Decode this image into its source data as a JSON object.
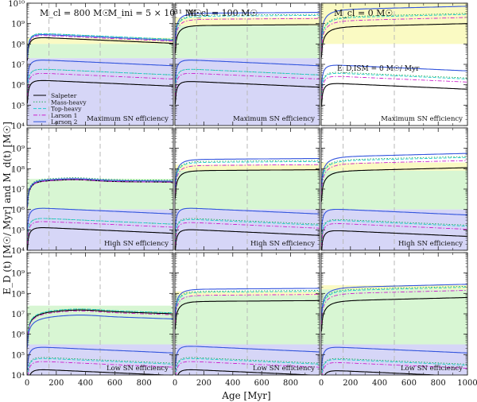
{
  "figure": {
    "ylabel": "E_D (t) [M☉/ Myr] and M_d(t) [M☉]",
    "xlabel": "Age [Myr]",
    "x_ticks": [
      0,
      200,
      400,
      600,
      800,
      1000
    ],
    "y_ticks": [
      "10⁴",
      "10⁵",
      "10⁶",
      "10⁷",
      "10⁸",
      "10⁹",
      "10¹⁰"
    ],
    "legend": [
      {
        "label": "Salpeter",
        "color": "#000000",
        "dash": "solid"
      },
      {
        "label": "Mass-heavy",
        "color": "#22aa55",
        "dash": "dotted"
      },
      {
        "label": "Top-heavy",
        "color": "#22cccc",
        "dash": "dashed"
      },
      {
        "label": "Larson 1",
        "color": "#cc22cc",
        "dash": "dashdot"
      },
      {
        "label": "Larson 2",
        "color": "#3355dd",
        "dash": "solid"
      }
    ],
    "column_titles": [
      {
        "main": "M_cl = 800 M☉",
        "extra": "M_ini = 5 × 10¹¹ M☉"
      },
      {
        "main": "M_cl = 100 M☉",
        "extra": ""
      },
      {
        "main": "M_cl = 0 M☉",
        "extra": "E_D,ISM = 0 M☉/ Myr"
      }
    ],
    "row_labels": [
      "Maximum SN efficiency",
      "High SN efficiency",
      "Low SN efficiency"
    ]
  },
  "chart_data": {
    "type": "line",
    "title": "",
    "xlabel": "Age [Myr]",
    "ylabel": "E_D (t) [M☉/ Myr] and M_d(t) [M☉]",
    "xlim": [
      0,
      1000
    ],
    "ylim_log10": [
      4,
      10
    ],
    "yscale": "log",
    "series_note": "log10 values; dm = dust mass, ed = dust production rate; order = Salpeter, Mass-heavy, Top-heavy, Larson 1, Larson 2",
    "panels": [
      {
        "row": "Maximum SN efficiency",
        "column": "M_cl = 800 M☉",
        "shades": [
          {
            "color": "yellow",
            "range": [
              8.0,
              8.3
            ]
          },
          {
            "color": "green",
            "range": [
              7.3,
              8.0
            ]
          },
          {
            "color": "blue",
            "range": [
              4.0,
              7.3
            ]
          }
        ],
        "dm": [
          8.35,
          8.55,
          8.55,
          8.45,
          8.5
        ],
        "ed": [
          6.25,
          6.8,
          6.8,
          6.6,
          7.25
        ],
        "dm_shape": "fall",
        "ed_shape": "fall"
      },
      {
        "row": "Maximum SN efficiency",
        "column": "M_cl = 100 M☉",
        "shades": [
          {
            "color": "yellow",
            "range": [
              8.9,
              9.3
            ]
          },
          {
            "color": "green",
            "range": [
              7.3,
              8.9
            ]
          },
          {
            "color": "blue",
            "range": [
              4.0,
              7.3
            ]
          }
        ],
        "dm": [
          8.9,
          9.4,
          9.35,
          9.2,
          9.5
        ],
        "ed": [
          6.2,
          6.8,
          6.8,
          6.6,
          7.25
        ],
        "dm_shape": "plateau",
        "ed_shape": "fall"
      },
      {
        "row": "Maximum SN efficiency",
        "column": "M_cl = 0 M☉",
        "shades": [
          {
            "color": "yellow",
            "range": [
              8.0,
              10.0
            ]
          }
        ],
        "dm": [
          9.0,
          9.5,
          9.45,
          9.3,
          9.85
        ],
        "ed": [
          6.1,
          6.65,
          6.6,
          6.45,
          7.0
        ],
        "dm_shape": "rise",
        "ed_shape": "fall"
      },
      {
        "row": "High SN efficiency",
        "column": "M_cl = 800 M☉",
        "shades": [
          {
            "color": "green",
            "range": [
              6.0,
              7.5
            ]
          },
          {
            "color": "blue",
            "range": [
              4.0,
              6.0
            ]
          }
        ],
        "dm": [
          7.4,
          7.5,
          7.45,
          7.4,
          7.45
        ],
        "ed": [
          5.15,
          5.6,
          5.6,
          5.45,
          6.1
        ],
        "dm_shape": "bump",
        "ed_shape": "fall"
      },
      {
        "row": "High SN efficiency",
        "column": "M_cl = 100 M☉",
        "shades": [
          {
            "color": "yellow",
            "range": [
              7.9,
              8.2
            ]
          },
          {
            "color": "green",
            "range": [
              6.0,
              7.9
            ]
          },
          {
            "color": "blue",
            "range": [
              4.0,
              6.0
            ]
          }
        ],
        "dm": [
          7.9,
          8.35,
          8.3,
          8.15,
          8.45
        ],
        "ed": [
          5.05,
          5.6,
          5.55,
          5.4,
          6.1
        ],
        "dm_shape": "plateau",
        "ed_shape": "fall"
      },
      {
        "row": "High SN efficiency",
        "column": "M_cl = 0 M☉",
        "shades": [
          {
            "color": "yellow",
            "range": [
              7.9,
              8.3
            ]
          },
          {
            "color": "green",
            "range": [
              6.0,
              7.9
            ]
          },
          {
            "color": "blue",
            "range": [
              4.0,
              6.0
            ]
          }
        ],
        "dm": [
          8.05,
          8.6,
          8.55,
          8.4,
          8.75
        ],
        "ed": [
          5.0,
          5.55,
          5.5,
          5.35,
          6.05
        ],
        "dm_shape": "rise",
        "ed_shape": "fall"
      },
      {
        "row": "Low SN efficiency",
        "column": "M_cl = 800 M☉",
        "shades": [
          {
            "color": "green",
            "range": [
              5.5,
              7.4
            ]
          },
          {
            "color": "blue",
            "range": [
              4.0,
              5.5
            ]
          }
        ],
        "dm": [
          7.25,
          7.3,
          7.3,
          7.2,
          7.0
        ],
        "ed": [
          4.3,
          4.9,
          4.85,
          4.7,
          5.4
        ],
        "dm_shape": "double",
        "ed_shape": "fall"
      },
      {
        "row": "Low SN efficiency",
        "column": "M_cl = 100 M☉",
        "shades": [
          {
            "color": "yellow",
            "range": [
              7.9,
              8.1
            ]
          },
          {
            "color": "green",
            "range": [
              5.5,
              7.9
            ]
          },
          {
            "color": "blue",
            "range": [
              4.0,
              5.5
            ]
          }
        ],
        "dm": [
          7.6,
          8.1,
          8.05,
          7.9,
          8.2
        ],
        "ed": [
          4.3,
          4.9,
          4.85,
          4.7,
          5.45
        ],
        "dm_shape": "plateau",
        "ed_shape": "fall"
      },
      {
        "row": "Low SN efficiency",
        "column": "M_cl = 0 M☉",
        "shades": [
          {
            "color": "yellow",
            "range": [
              8.2,
              8.4
            ]
          },
          {
            "color": "green",
            "range": [
              5.5,
              8.2
            ]
          },
          {
            "color": "blue",
            "range": [
              4.0,
              5.5
            ]
          }
        ],
        "dm": [
          7.8,
          8.35,
          8.3,
          8.15,
          8.45
        ],
        "ed": [
          4.25,
          4.85,
          4.8,
          4.65,
          5.4
        ],
        "dm_shape": "rise",
        "ed_shape": "fall"
      }
    ],
    "reference_lines_myr": [
      150,
      500
    ]
  }
}
